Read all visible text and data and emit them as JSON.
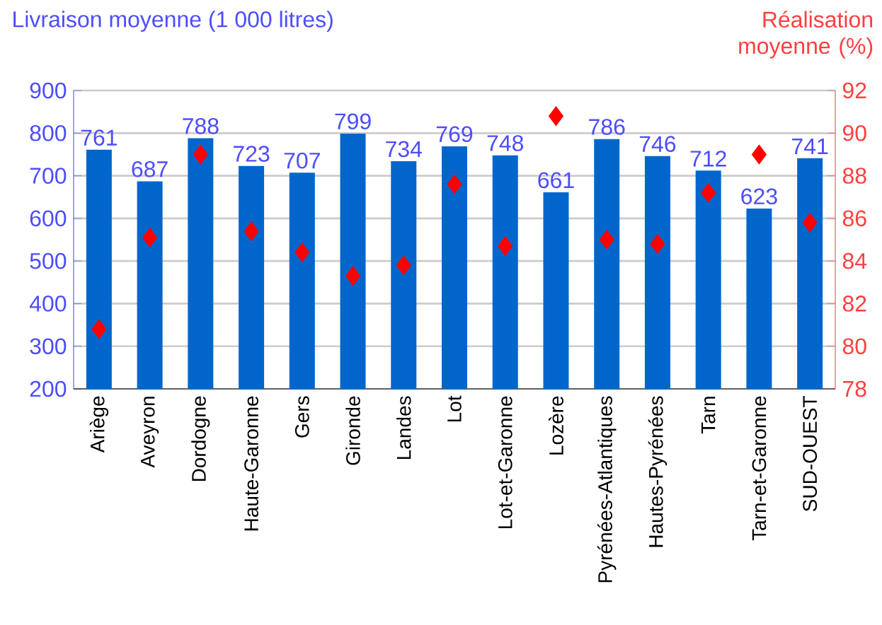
{
  "chart_data": {
    "type": "bar",
    "ylabel": "Livraison moyenne (1 000 litres)",
    "y2label": "Réalisation moyenne (%)",
    "categories": [
      "Ariège",
      "Aveyron",
      "Dordogne",
      "Haute-Garonne",
      "Gers",
      "Gironde",
      "Landes",
      "Lot",
      "Lot-et-Garonne",
      "Lozère",
      "Pyrénées-Atlantiques",
      "Hautes-Pyrénées",
      "Tarn",
      "Tarn-et-Garonne",
      "SUD-OUEST"
    ],
    "series": [
      {
        "color": "#0066cc",
        "values": [
          761,
          687,
          788,
          723,
          707,
          799,
          734,
          769,
          748,
          661,
          786,
          746,
          712,
          623,
          741
        ],
        "value_labels": [
          "761",
          "687",
          "788",
          "723",
          "707",
          "799",
          "734",
          "769",
          "748",
          "661",
          "786",
          "746",
          "712",
          "623",
          "741"
        ]
      },
      {
        "type": "scatter",
        "axis": "y2",
        "color": "#ff0000",
        "values": [
          80.8,
          85.1,
          89.0,
          85.4,
          84.4,
          83.3,
          83.8,
          87.6,
          84.7,
          90.8,
          85.0,
          84.8,
          87.2,
          89.0,
          85.8
        ]
      }
    ],
    "marker": "diamond",
    "grid": "y",
    "ylim": [
      200,
      900
    ],
    "yticks": [
      200,
      300,
      400,
      500,
      600,
      700,
      800,
      900
    ],
    "y2lim": [
      78,
      92
    ],
    "y2ticks": [
      78,
      80,
      82,
      84,
      86,
      88,
      90,
      92
    ]
  }
}
